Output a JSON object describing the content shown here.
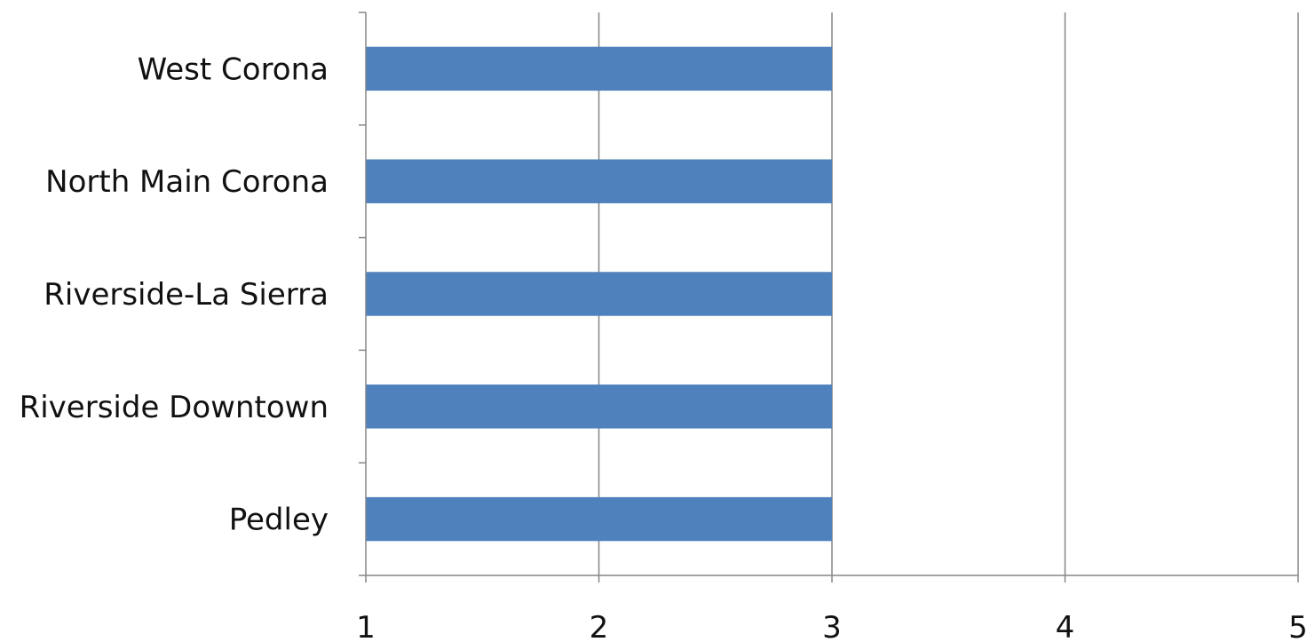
{
  "chart_data": {
    "type": "bar",
    "orientation": "horizontal",
    "categories": [
      "West Corona",
      "North Main Corona",
      "Riverside-La Sierra",
      "Riverside Downtown",
      "Pedley"
    ],
    "values": [
      3,
      3,
      3,
      3,
      3
    ],
    "xlim": [
      1,
      5
    ],
    "xticks": [
      "1",
      "2",
      "3",
      "4",
      "5"
    ],
    "title": "",
    "xlabel": "",
    "ylabel": "",
    "grid": "vertical",
    "legend": "none",
    "bar_color": "#4F81BD",
    "grid_color": "#868686"
  }
}
